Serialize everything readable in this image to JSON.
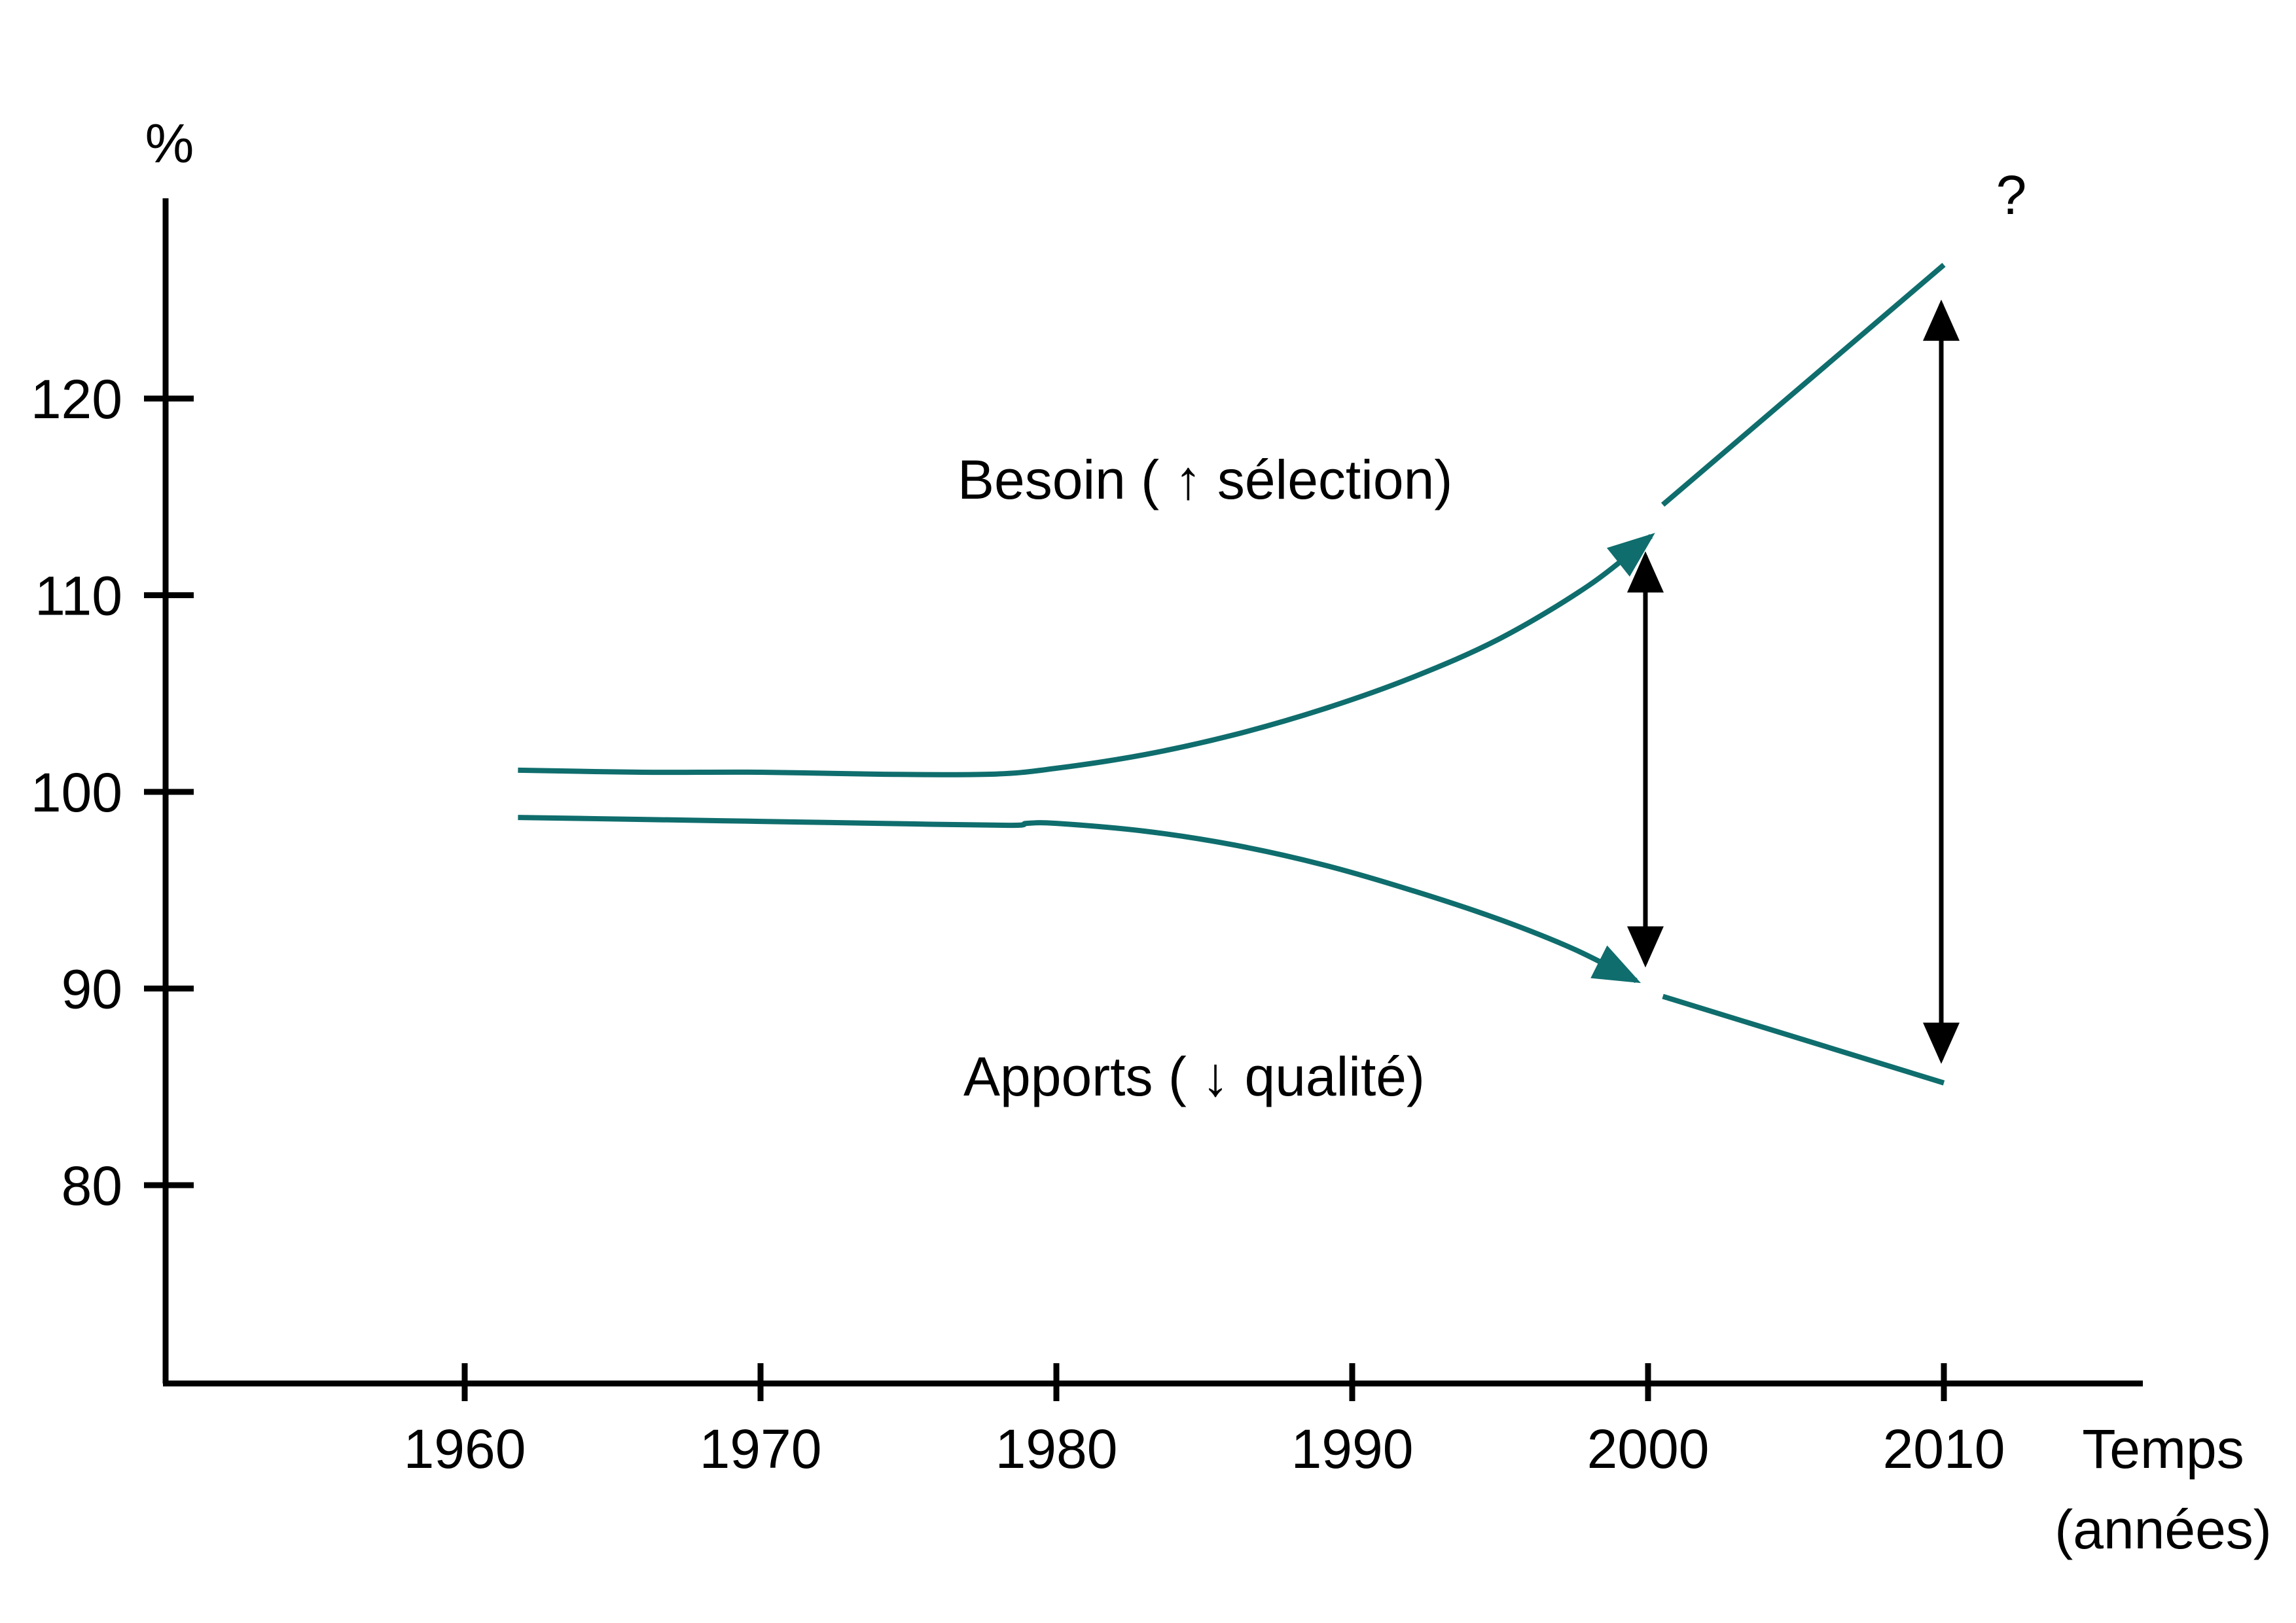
{
  "chart_data": {
    "type": "line",
    "ylabel": "%",
    "xlabel_line1": "Temps",
    "xlabel_line2": "(années)",
    "x_ticks": [
      1960,
      1970,
      1980,
      1990,
      2000,
      2010
    ],
    "y_ticks": [
      80,
      90,
      100,
      110,
      120
    ],
    "xlim": [
      1950,
      2016
    ],
    "ylim": [
      70,
      130
    ],
    "grid": false,
    "series": [
      {
        "name": "Besoin (↑ sélection)",
        "color": "#0f6d6d",
        "points": [
          [
            1961.8,
            101.1
          ],
          [
            1966,
            101.0
          ],
          [
            1970,
            101.0
          ],
          [
            1974,
            100.9
          ],
          [
            1977.8,
            100.9
          ],
          [
            1980,
            101.2
          ],
          [
            1983,
            101.9
          ],
          [
            1986,
            102.9
          ],
          [
            1989,
            104.2
          ],
          [
            1992,
            105.8
          ],
          [
            1995,
            107.8
          ],
          [
            1998,
            110.5
          ],
          [
            2000.1,
            113.0
          ]
        ],
        "arrow_end": true,
        "projection": [
          [
            2000.5,
            114.6
          ],
          [
            2010,
            126.8
          ]
        ]
      },
      {
        "name": "Apports (↓ qualité)",
        "color": "#0f6d6d",
        "points": [
          [
            1961.8,
            98.7
          ],
          [
            1966,
            98.6
          ],
          [
            1970,
            98.5
          ],
          [
            1974,
            98.4
          ],
          [
            1978.4,
            98.3
          ],
          [
            1979,
            98.4
          ],
          [
            1980,
            98.4
          ],
          [
            1983,
            98.0
          ],
          [
            1986,
            97.3
          ],
          [
            1989,
            96.3
          ],
          [
            1992,
            95.0
          ],
          [
            1995,
            93.5
          ],
          [
            1997.5,
            92.0
          ],
          [
            1999.6,
            90.4
          ]
        ],
        "arrow_end": true,
        "projection": [
          [
            2000.5,
            89.6
          ],
          [
            2010,
            85.2
          ]
        ]
      }
    ],
    "gaps": [
      {
        "x": 2000,
        "from": 112.0,
        "to": 91.3
      },
      {
        "x": 2010,
        "from": 124.8,
        "to": 86.4
      }
    ],
    "annotations": {
      "besoin": "Besoin ( ↑ sélection)",
      "apports": "Apports ( ↓ qualité)",
      "question": "?"
    }
  }
}
